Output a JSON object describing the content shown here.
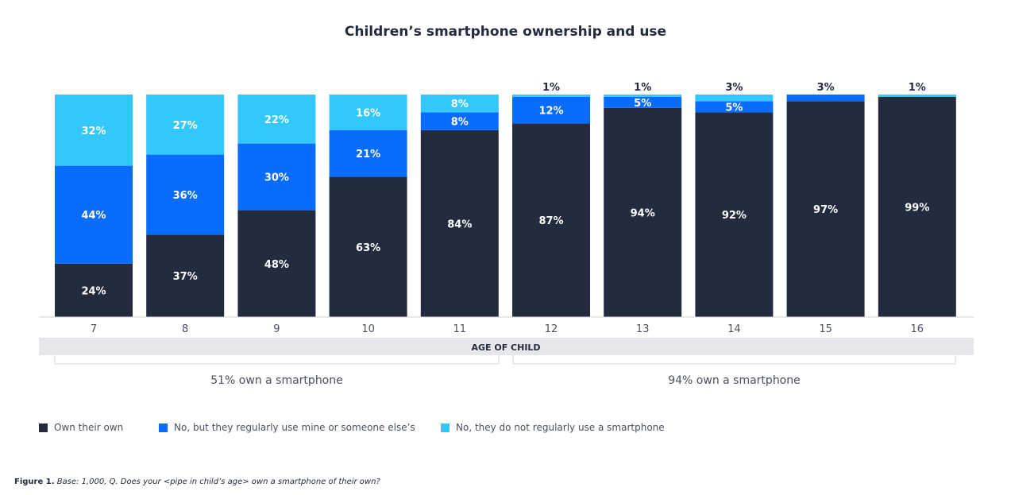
{
  "colors": {
    "own": "#232b3e",
    "use_other": "#0a6cff",
    "no_use": "#33c8fd",
    "axis_band": "#e6e7ea"
  },
  "chart_data": {
    "type": "bar",
    "stacked": true,
    "title": "Children’s smartphone ownership and use",
    "xlabel": "AGE OF CHILD",
    "categories": [
      "7",
      "8",
      "9",
      "10",
      "11",
      "12",
      "13",
      "14",
      "15",
      "16"
    ],
    "series": [
      {
        "name": "Own their own",
        "values": [
          24,
          37,
          48,
          63,
          84,
          87,
          94,
          92,
          97,
          99
        ],
        "labels": [
          "24%",
          "37%",
          "48%",
          "63%",
          "84%",
          "87%",
          "94%",
          "92%",
          "97%",
          "99%"
        ]
      },
      {
        "name": "No, but they regularly use mine or someone else’s",
        "values": [
          44,
          36,
          30,
          21,
          8,
          12,
          5,
          5,
          3,
          0
        ],
        "labels": [
          "44%",
          "36%",
          "30%",
          "21%",
          "8%",
          "12%",
          "5%",
          "5%",
          "3%",
          ""
        ]
      },
      {
        "name": "No, they do not regularly use a smartphone",
        "values": [
          32,
          27,
          22,
          16,
          8,
          1,
          1,
          3,
          0,
          1
        ],
        "labels": [
          "32%",
          "27%",
          "22%",
          "16%",
          "8%",
          "1%",
          "1%",
          "3%",
          "",
          "1%"
        ]
      }
    ],
    "ylim": [
      0,
      100
    ],
    "grid": false,
    "legend": "bottom-left",
    "group_notes": [
      "51% own a smartphone",
      "94% own a smartphone"
    ]
  },
  "caption": {
    "label": "Figure 1.",
    "text": "Base: 1,000, Q. Does your <pipe in child’s age> own a smartphone of their own?"
  }
}
